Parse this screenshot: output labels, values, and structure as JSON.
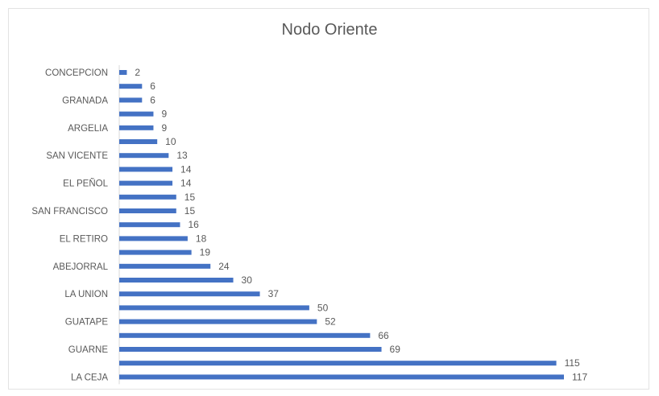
{
  "chart_data": {
    "type": "bar",
    "orientation": "horizontal",
    "title": "Nodo Oriente",
    "xlabel": "",
    "ylabel": "",
    "xlim": [
      0,
      117
    ],
    "grid": false,
    "legend": "none",
    "bar_color": "#4472c4",
    "categories": [
      "CONCEPCION",
      "",
      "GRANADA",
      "",
      "ARGELIA",
      "",
      "SAN VICENTE",
      "",
      "EL PEÑOL",
      "",
      "SAN FRANCISCO",
      "",
      "EL RETIRO",
      "",
      "ABEJORRAL",
      "",
      "LA UNION",
      "",
      "GUATAPE",
      "",
      "GUARNE",
      "",
      "LA CEJA"
    ],
    "values": [
      2,
      6,
      6,
      9,
      9,
      10,
      13,
      14,
      14,
      15,
      15,
      16,
      18,
      19,
      24,
      30,
      37,
      50,
      52,
      66,
      69,
      115,
      117
    ],
    "value_labels": [
      "2",
      "6",
      "6",
      "9",
      "9",
      "10",
      "13",
      "14",
      "14",
      "15",
      "15",
      "16",
      "18",
      "19",
      "24",
      "30",
      "37",
      "50",
      "52",
      "66",
      "69",
      "115",
      "117"
    ]
  }
}
